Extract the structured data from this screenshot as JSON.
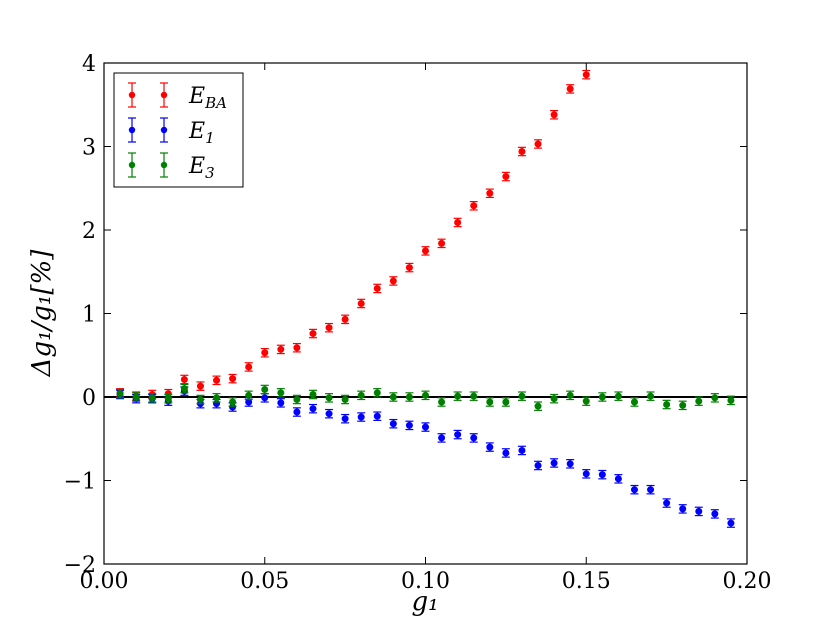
{
  "chart_data": {
    "type": "scatter",
    "title": "",
    "xlabel": "g₁",
    "ylabel": "Δg₁/g₁[%]",
    "xlim": [
      0.0,
      0.2
    ],
    "ylim": [
      -2,
      4
    ],
    "xticks": [
      "0.00",
      "0.05",
      "0.10",
      "0.15",
      "0.20"
    ],
    "yticks": [
      "−2",
      "−1",
      "0",
      "1",
      "2",
      "3",
      "4"
    ],
    "grid": false,
    "legend_position": "top-left",
    "reference_line_y": 0,
    "series": [
      {
        "name": "E_BA",
        "color": "#ff0000",
        "points": [
          [
            0.005,
            0.05,
            0.05
          ],
          [
            0.01,
            0.01,
            0.05
          ],
          [
            0.015,
            0.03,
            0.05
          ],
          [
            0.02,
            0.04,
            0.05
          ],
          [
            0.025,
            0.21,
            0.05
          ],
          [
            0.03,
            0.13,
            0.05
          ],
          [
            0.035,
            0.2,
            0.05
          ],
          [
            0.04,
            0.22,
            0.05
          ],
          [
            0.045,
            0.36,
            0.05
          ],
          [
            0.05,
            0.53,
            0.05
          ],
          [
            0.055,
            0.57,
            0.05
          ],
          [
            0.06,
            0.59,
            0.05
          ],
          [
            0.065,
            0.76,
            0.05
          ],
          [
            0.07,
            0.83,
            0.05
          ],
          [
            0.075,
            0.93,
            0.05
          ],
          [
            0.08,
            1.12,
            0.05
          ],
          [
            0.085,
            1.3,
            0.05
          ],
          [
            0.09,
            1.39,
            0.05
          ],
          [
            0.095,
            1.55,
            0.05
          ],
          [
            0.1,
            1.75,
            0.05
          ],
          [
            0.105,
            1.84,
            0.05
          ],
          [
            0.11,
            2.09,
            0.05
          ],
          [
            0.115,
            2.29,
            0.05
          ],
          [
            0.12,
            2.44,
            0.05
          ],
          [
            0.125,
            2.64,
            0.05
          ],
          [
            0.13,
            2.94,
            0.05
          ],
          [
            0.135,
            3.03,
            0.05
          ],
          [
            0.14,
            3.38,
            0.05
          ],
          [
            0.145,
            3.69,
            0.05
          ],
          [
            0.15,
            3.86,
            0.05
          ]
        ]
      },
      {
        "name": "E_1",
        "color": "#0000ff",
        "points": [
          [
            0.005,
            0.03,
            0.05
          ],
          [
            0.01,
            -0.02,
            0.05
          ],
          [
            0.015,
            -0.02,
            0.05
          ],
          [
            0.02,
            -0.05,
            0.05
          ],
          [
            0.025,
            0.07,
            0.05
          ],
          [
            0.03,
            -0.08,
            0.05
          ],
          [
            0.035,
            -0.08,
            0.05
          ],
          [
            0.04,
            -0.12,
            0.05
          ],
          [
            0.045,
            -0.06,
            0.05
          ],
          [
            0.05,
            -0.01,
            0.05
          ],
          [
            0.055,
            -0.07,
            0.05
          ],
          [
            0.06,
            -0.18,
            0.05
          ],
          [
            0.065,
            -0.14,
            0.05
          ],
          [
            0.07,
            -0.2,
            0.05
          ],
          [
            0.075,
            -0.26,
            0.05
          ],
          [
            0.08,
            -0.24,
            0.05
          ],
          [
            0.085,
            -0.23,
            0.05
          ],
          [
            0.09,
            -0.32,
            0.05
          ],
          [
            0.095,
            -0.34,
            0.05
          ],
          [
            0.1,
            -0.36,
            0.05
          ],
          [
            0.105,
            -0.49,
            0.05
          ],
          [
            0.11,
            -0.45,
            0.05
          ],
          [
            0.115,
            -0.49,
            0.05
          ],
          [
            0.12,
            -0.6,
            0.05
          ],
          [
            0.125,
            -0.67,
            0.05
          ],
          [
            0.13,
            -0.64,
            0.05
          ],
          [
            0.135,
            -0.82,
            0.05
          ],
          [
            0.14,
            -0.79,
            0.05
          ],
          [
            0.145,
            -0.8,
            0.05
          ],
          [
            0.15,
            -0.92,
            0.05
          ],
          [
            0.155,
            -0.93,
            0.05
          ],
          [
            0.16,
            -0.98,
            0.05
          ],
          [
            0.165,
            -1.11,
            0.05
          ],
          [
            0.17,
            -1.11,
            0.05
          ],
          [
            0.175,
            -1.27,
            0.05
          ],
          [
            0.18,
            -1.34,
            0.05
          ],
          [
            0.185,
            -1.37,
            0.05
          ],
          [
            0.19,
            -1.4,
            0.05
          ],
          [
            0.195,
            -1.51,
            0.05
          ]
        ]
      },
      {
        "name": "E_3",
        "color": "#008000",
        "points": [
          [
            0.005,
            0.04,
            0.05
          ],
          [
            0.01,
            0.0,
            0.05
          ],
          [
            0.015,
            -0.01,
            0.05
          ],
          [
            0.02,
            -0.02,
            0.05
          ],
          [
            0.025,
            0.1,
            0.05
          ],
          [
            0.03,
            -0.03,
            0.05
          ],
          [
            0.035,
            -0.01,
            0.05
          ],
          [
            0.04,
            -0.06,
            0.05
          ],
          [
            0.045,
            0.02,
            0.05
          ],
          [
            0.05,
            0.09,
            0.05
          ],
          [
            0.055,
            0.05,
            0.05
          ],
          [
            0.06,
            -0.03,
            0.05
          ],
          [
            0.065,
            0.03,
            0.05
          ],
          [
            0.07,
            -0.01,
            0.05
          ],
          [
            0.075,
            -0.03,
            0.05
          ],
          [
            0.08,
            0.02,
            0.05
          ],
          [
            0.085,
            0.05,
            0.05
          ],
          [
            0.09,
            0.0,
            0.05
          ],
          [
            0.095,
            0.0,
            0.05
          ],
          [
            0.1,
            0.02,
            0.05
          ],
          [
            0.105,
            -0.06,
            0.05
          ],
          [
            0.11,
            0.01,
            0.05
          ],
          [
            0.115,
            0.01,
            0.05
          ],
          [
            0.12,
            -0.06,
            0.05
          ],
          [
            0.125,
            -0.06,
            0.05
          ],
          [
            0.13,
            0.01,
            0.05
          ],
          [
            0.135,
            -0.11,
            0.05
          ],
          [
            0.14,
            -0.02,
            0.05
          ],
          [
            0.145,
            0.02,
            0.05
          ],
          [
            0.15,
            -0.05,
            0.05
          ],
          [
            0.155,
            0.0,
            0.05
          ],
          [
            0.16,
            0.01,
            0.05
          ],
          [
            0.165,
            -0.06,
            0.05
          ],
          [
            0.17,
            0.01,
            0.05
          ],
          [
            0.175,
            -0.09,
            0.05
          ],
          [
            0.18,
            -0.1,
            0.05
          ],
          [
            0.185,
            -0.05,
            0.05
          ],
          [
            0.19,
            -0.01,
            0.05
          ],
          [
            0.195,
            -0.04,
            0.05
          ]
        ]
      }
    ]
  }
}
